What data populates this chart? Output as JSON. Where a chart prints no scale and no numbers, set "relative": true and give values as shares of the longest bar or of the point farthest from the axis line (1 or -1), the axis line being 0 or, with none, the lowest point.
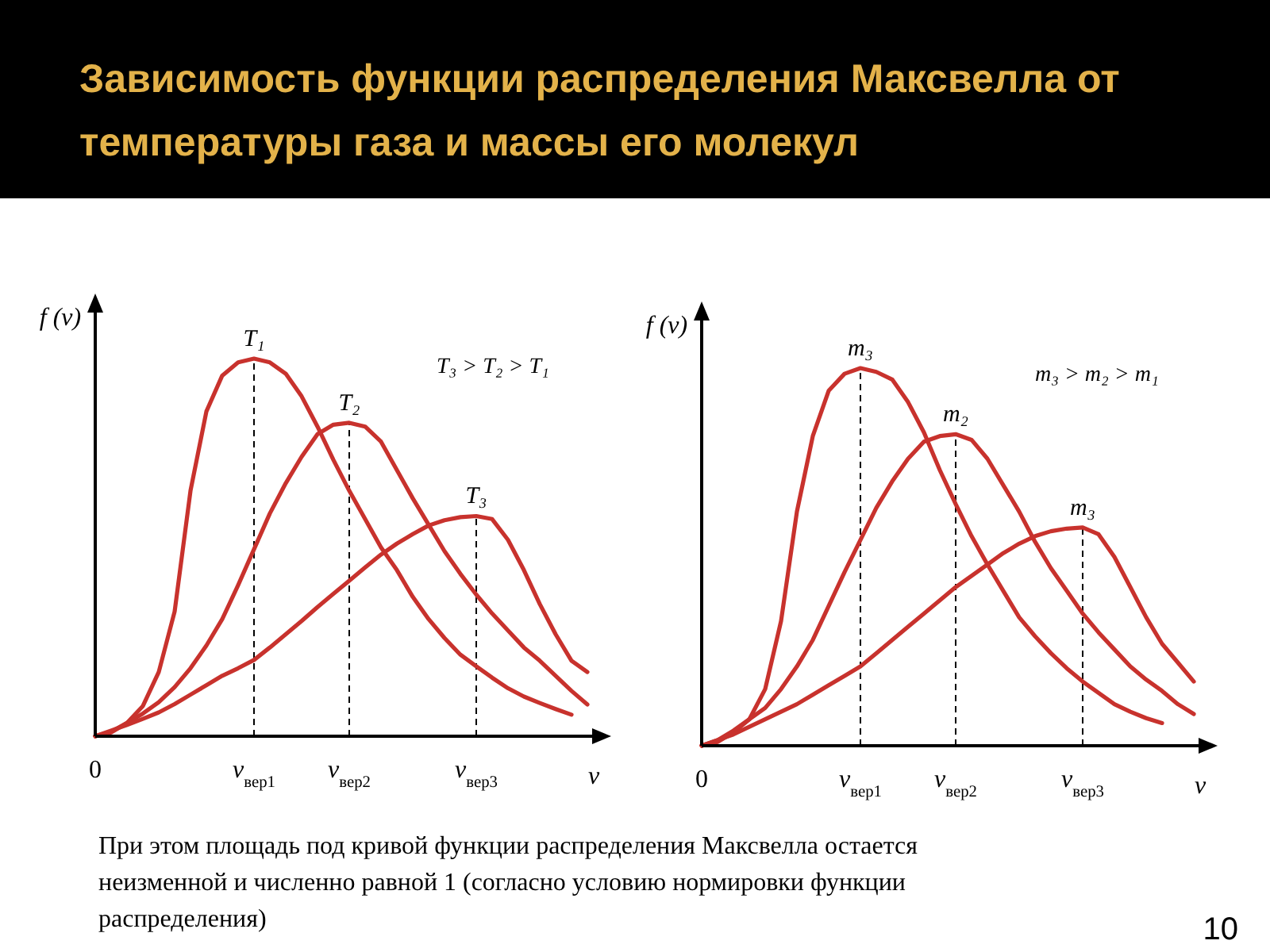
{
  "chart_data": [
    {
      "type": "line",
      "title": "Зависимость функции распределения Максвелла от температуры газа и массы его молекул",
      "relative": true,
      "ylabel": "f (v)",
      "xlabel": "v",
      "marker": "none",
      "line_style": "solid",
      "categories": [
        "0",
        null,
        null,
        null,
        null,
        null,
        null,
        null,
        null,
        null,
        "v$_{вер1}$",
        null,
        null,
        null,
        null,
        null,
        "v$_{вер2}$",
        null,
        null,
        null,
        null,
        null,
        null,
        null,
        "v$_{вер3}$",
        null,
        null,
        null,
        null,
        null,
        null,
        null
      ],
      "series": [
        {
          "name": "T₁",
          "color": "#c8322d",
          "values": [
            0,
            0.01,
            0.035,
            0.08,
            0.17,
            0.33,
            0.65,
            0.86,
            0.955,
            0.99,
            1.0,
            0.99,
            0.96,
            0.9,
            0.82,
            0.732,
            0.65,
            0.575,
            0.5,
            0.44,
            0.369,
            0.31,
            0.26,
            0.216,
            0.185,
            0.155,
            0.127,
            0.105,
            0.088,
            0.072,
            0.057,
            null
          ]
        },
        {
          "name": "T₂",
          "color": "#c8322d",
          "values": [
            0,
            0.012,
            0.035,
            0.06,
            0.09,
            0.13,
            0.18,
            0.24,
            0.31,
            0.4,
            0.495,
            0.59,
            0.67,
            0.74,
            0.8,
            0.825,
            0.83,
            0.82,
            0.78,
            0.705,
            0.63,
            0.56,
            0.49,
            0.43,
            0.375,
            0.325,
            0.28,
            0.235,
            0.2,
            0.16,
            0.12,
            0.084
          ]
        },
        {
          "name": "T₃",
          "color": "#c8322d",
          "values": [
            0,
            0.015,
            0.03,
            0.046,
            0.063,
            0.085,
            0.11,
            0.135,
            0.16,
            0.18,
            0.202,
            0.235,
            0.27,
            0.305,
            0.342,
            0.377,
            0.412,
            0.447,
            0.481,
            0.51,
            0.535,
            0.558,
            0.572,
            0.58,
            0.583,
            0.575,
            0.52,
            0.44,
            0.35,
            0.27,
            0.2,
            0.17
          ]
        }
      ],
      "ref_lines": [
        {
          "axis": "x",
          "value": "v$_{вер1}$",
          "line_style": "dashed",
          "color": "#000000"
        },
        {
          "axis": "x",
          "value": "v$_{вер2}$",
          "line_style": "dashed",
          "color": "#000000"
        },
        {
          "axis": "x",
          "value": "v$_{вер3}$",
          "line_style": "dashed",
          "color": "#000000"
        }
      ],
      "annotations": [
        "T₃ > T₂ > T₁",
        "При этом площадь под кривой функции распределения Максвелла остается неизменной и численно равной  1 (согласно условию нормировки функции распределения)",
        "10"
      ]
    },
    {
      "type": "line",
      "relative": true,
      "ylabel": "f (v)",
      "xlabel": "v",
      "marker": "none",
      "line_style": "solid",
      "categories": [
        "0",
        null,
        null,
        null,
        null,
        null,
        null,
        null,
        null,
        null,
        "v$_{вер1}$",
        null,
        null,
        null,
        null,
        null,
        "v$_{вер2}$",
        null,
        null,
        null,
        null,
        null,
        null,
        null,
        "v$_{вер3}$",
        null,
        null,
        null,
        null,
        null,
        null,
        null
      ],
      "series": [
        {
          "name": "m₃",
          "color": "#c8322d",
          "values": [
            0,
            0.01,
            0.035,
            0.07,
            0.15,
            0.33,
            0.62,
            0.82,
            0.94,
            0.985,
            1.0,
            0.99,
            0.97,
            0.91,
            0.83,
            0.73,
            0.64,
            0.555,
            0.48,
            0.41,
            0.34,
            0.29,
            0.245,
            0.205,
            0.17,
            0.14,
            0.11,
            0.09,
            0.073,
            0.06,
            null,
            null
          ]
        },
        {
          "name": "m₂",
          "color": "#c8322d",
          "values": [
            0,
            0.015,
            0.04,
            0.07,
            0.1,
            0.15,
            0.21,
            0.28,
            0.37,
            0.46,
            0.545,
            0.63,
            0.7,
            0.76,
            0.805,
            0.82,
            0.825,
            0.81,
            0.76,
            0.69,
            0.62,
            0.54,
            0.47,
            0.41,
            0.35,
            0.3,
            0.255,
            0.21,
            0.175,
            0.145,
            0.11,
            0.084
          ]
        },
        {
          "name": "m₃",
          "color": "#c8322d",
          "values": [
            0,
            0.015,
            0.03,
            0.05,
            0.07,
            0.09,
            0.11,
            0.135,
            0.16,
            0.185,
            0.21,
            0.245,
            0.28,
            0.315,
            0.35,
            0.385,
            0.42,
            0.45,
            0.48,
            0.51,
            0.535,
            0.555,
            0.568,
            0.575,
            0.578,
            0.56,
            0.5,
            0.42,
            0.34,
            0.27,
            0.22,
            0.17
          ]
        }
      ],
      "ref_lines": [
        {
          "axis": "x",
          "value": "v$_{вер1}$",
          "line_style": "dashed",
          "color": "#000000"
        },
        {
          "axis": "x",
          "value": "v$_{вер2}$",
          "line_style": "dashed",
          "color": "#000000"
        },
        {
          "axis": "x",
          "value": "v$_{вер3}$",
          "line_style": "dashed",
          "color": "#000000"
        }
      ],
      "annotations": [
        "m₃ > m₂ > m₁"
      ]
    }
  ]
}
